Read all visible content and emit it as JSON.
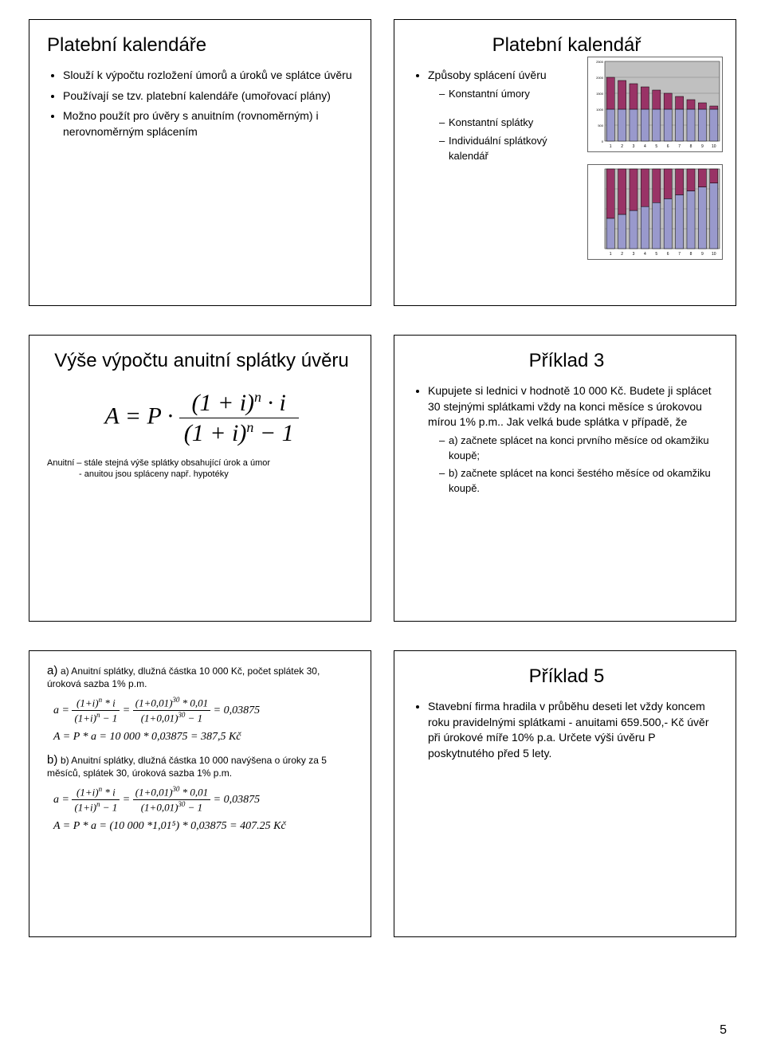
{
  "pageNumber": "5",
  "slide1": {
    "title": "Platební kalendáře",
    "b1": "Slouží k výpočtu rozložení úmorů a úroků ve splátce úvěru",
    "b2": "Používají se tzv. platební kalendáře (umořovací plány)",
    "b3": "Možno použít pro úvěry s anuitním (rovnoměrným) i nerovnoměrným splácením"
  },
  "slide2": {
    "title": "Platební kalendář",
    "b1": "Způsoby splácení úvěru",
    "s1": "Konstantní úmory",
    "s2": "Konstantní splátky",
    "s3": "Individuální splátkový kalendář"
  },
  "slide3": {
    "title": "Výše výpočtu anuitní splátky úvěru",
    "note1": "Anuitní – stále stejná výše splátky obsahující úrok a úmor",
    "note2": "- anuitou jsou spláceny např. hypotéky",
    "fA": "A",
    "fEq": " = ",
    "fP": "P",
    "fDot": " · ",
    "num": "(1 + i)",
    "numExp": "n",
    "numTail": " · i",
    "den": "(1 + i)",
    "denExp": "n",
    "denTail": " − 1"
  },
  "slide4": {
    "title": "Příklad 3",
    "b1": "Kupujete si lednici v hodnotě 10 000 Kč. Budete ji splácet 30 stejnými splátkami vždy na konci měsíce s úrokovou mírou 1% p.m.. Jak velká bude splátka v případě, že",
    "s1": "a) začnete splácet na konci prvního měsíce od okamžiku koupě;",
    "s2": "b) začnete splácet na konci šestého měsíce od okamžiku koupě."
  },
  "slide5": {
    "lead_a": "a) Anuitní splátky, dlužná částka 10 000 Kč, počet splátek 30, úroková sazba 1% p.m.",
    "lead_b": "b) Anuitní splátky, dlužná částka 10 000 navýšena o úroky za 5 měsíců, splátek 30, úroková sazba 1% p.m.",
    "a_line": "a = ",
    "f1n": "(1+i)",
    "f1nExp": "n",
    "f1nTail": " * i",
    "f1d": "(1+i)",
    "f1dExp": "n",
    "f1dTail": " − 1",
    "eq": " = ",
    "f2n": "(1+0,01)",
    "f2nExp": "30",
    "f2nTail": " * 0,01",
    "f2d": "(1+0,01)",
    "f2dExp": "30",
    "f2dTail": " − 1",
    "res": " = 0,03875",
    "Aline1": "A = P * a = 10 000 * 0,03875 = 387,5 Kč",
    "Aline2": "A = P * a = (10 000 *1,01⁵) * 0,03875 = 407.25 Kč"
  },
  "slide6": {
    "title": "Příklad 5",
    "b1": "Stavební firma hradila v průběhu deseti let vždy koncem roku pravidelnými splátkami - anuitami 659.500,- Kč úvěr při úrokové míře 10% p.a. Určete výši úvěru P poskytnutého před 5 lety."
  },
  "chartA": {
    "plotBg": "#c0c0c0",
    "lowerColor": "#9999cc",
    "upperColor": "#993366",
    "border": "#000000",
    "yMax": 2500,
    "yTicks": [
      0,
      500,
      1000,
      1500,
      2000,
      2500
    ],
    "categories": [
      "1",
      "2",
      "3",
      "4",
      "5",
      "6",
      "7",
      "8",
      "9",
      "10"
    ],
    "lower": [
      1000,
      1000,
      1000,
      1000,
      1000,
      1000,
      1000,
      1000,
      1000,
      1000
    ],
    "upper": [
      2000,
      1900,
      1800,
      1700,
      1600,
      1500,
      1400,
      1300,
      1200,
      1100
    ]
  },
  "chartB": {
    "plotBg": "#c0c0c0",
    "lowerColor": "#9999cc",
    "upperColor": "#993366",
    "border": "#000000",
    "categories": [
      "1",
      "2",
      "3",
      "4",
      "5",
      "6",
      "7",
      "8",
      "9",
      "10"
    ],
    "lower": [
      620,
      700,
      780,
      860,
      940,
      1020,
      1100,
      1180,
      1260,
      1340
    ],
    "total": 1628
  }
}
